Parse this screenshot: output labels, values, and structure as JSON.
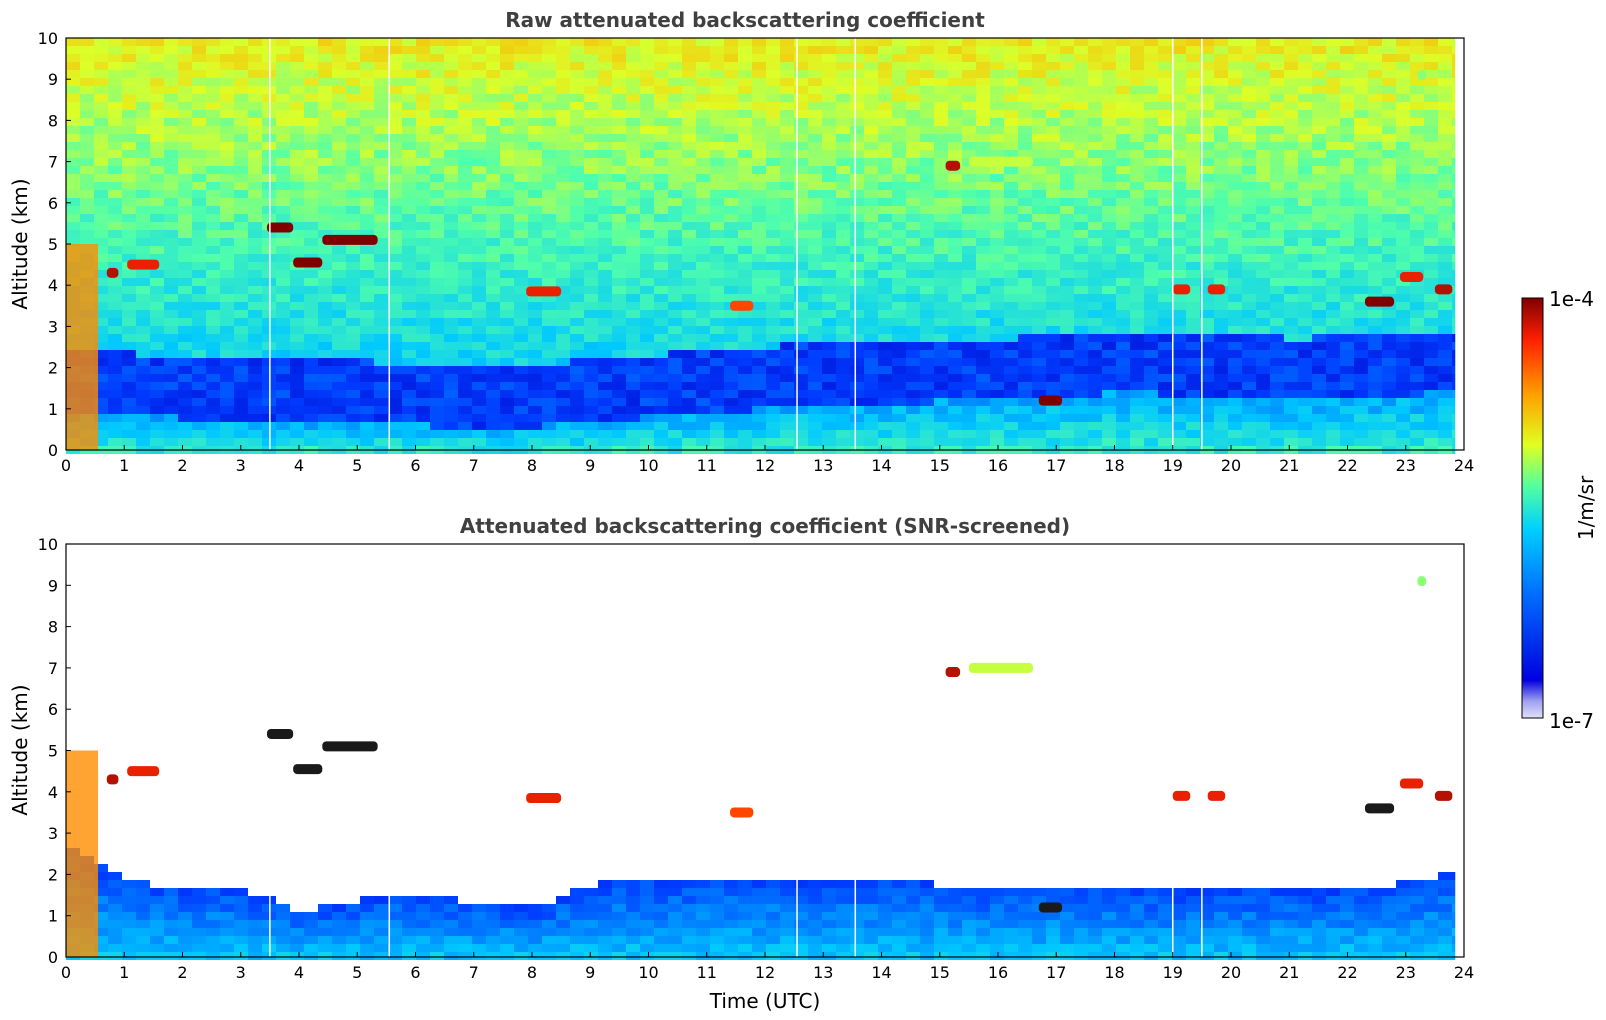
{
  "chart_data": [
    {
      "type": "heatmap",
      "title": "Raw attenuated backscattering coefficient",
      "xlabel": "",
      "ylabel": "Altitude (km)",
      "xlim": [
        0,
        24
      ],
      "ylim": [
        0,
        10
      ],
      "x_ticks": [
        0,
        1,
        2,
        3,
        4,
        5,
        6,
        7,
        8,
        9,
        10,
        11,
        12,
        13,
        14,
        15,
        16,
        17,
        18,
        19,
        20,
        21,
        22,
        23,
        24
      ],
      "y_ticks": [
        0,
        1,
        2,
        3,
        4,
        5,
        6,
        7,
        8,
        9,
        10
      ],
      "data_end_time": 23.85,
      "gap_times": [
        3.5,
        5.55,
        12.55,
        13.55,
        19.0,
        19.5
      ],
      "boundary_layer_top_km": [
        {
          "t": 0,
          "z": 1.0
        },
        {
          "t": 2,
          "z": 0.85
        },
        {
          "t": 5,
          "z": 0.75
        },
        {
          "t": 7.5,
          "z": 0.6
        },
        {
          "t": 10,
          "z": 0.9
        },
        {
          "t": 13,
          "z": 1.2
        },
        {
          "t": 16,
          "z": 1.3
        },
        {
          "t": 18,
          "z": 1.5
        },
        {
          "t": 21,
          "z": 1.3
        },
        {
          "t": 23.85,
          "z": 1.5
        }
      ],
      "cloud_layers": [
        {
          "t0": 0.7,
          "t1": 0.9,
          "z": 4.3,
          "intensity": 0.95
        },
        {
          "t0": 1.05,
          "t1": 1.6,
          "z": 4.5,
          "intensity": 0.9
        },
        {
          "t0": 3.45,
          "t1": 3.9,
          "z": 5.4,
          "intensity": 1.0
        },
        {
          "t0": 3.9,
          "t1": 4.4,
          "z": 4.55,
          "intensity": 1.0
        },
        {
          "t0": 4.4,
          "t1": 5.35,
          "z": 5.1,
          "intensity": 1.0
        },
        {
          "t0": 7.9,
          "t1": 8.5,
          "z": 3.85,
          "intensity": 0.9
        },
        {
          "t0": 11.4,
          "t1": 11.8,
          "z": 3.5,
          "intensity": 0.85
        },
        {
          "t0": 15.1,
          "t1": 15.35,
          "z": 6.9,
          "intensity": 0.95
        },
        {
          "t0": 15.5,
          "t1": 16.6,
          "z": 7.0,
          "intensity": 0.6
        },
        {
          "t0": 16.7,
          "t1": 17.1,
          "z": 1.2,
          "intensity": 1.0
        },
        {
          "t0": 19.0,
          "t1": 19.3,
          "z": 3.9,
          "intensity": 0.9
        },
        {
          "t0": 19.6,
          "t1": 19.9,
          "z": 3.9,
          "intensity": 0.9
        },
        {
          "t0": 22.3,
          "t1": 22.8,
          "z": 3.6,
          "intensity": 1.0
        },
        {
          "t0": 22.9,
          "t1": 23.3,
          "z": 4.2,
          "intensity": 0.9
        },
        {
          "t0": 23.5,
          "t1": 23.8,
          "z": 3.9,
          "intensity": 0.95
        },
        {
          "t0": 23.2,
          "t1": 23.35,
          "z": 9.1,
          "intensity": 0.55
        }
      ]
    },
    {
      "type": "heatmap",
      "title": "Attenuated backscattering coefficient (SNR-screened)",
      "xlabel": "Time (UTC)",
      "ylabel": "Altitude (km)",
      "xlim": [
        0,
        24
      ],
      "ylim": [
        0,
        10
      ],
      "x_ticks": [
        0,
        1,
        2,
        3,
        4,
        5,
        6,
        7,
        8,
        9,
        10,
        11,
        12,
        13,
        14,
        15,
        16,
        17,
        18,
        19,
        20,
        21,
        22,
        23,
        24
      ],
      "y_ticks": [
        0,
        1,
        2,
        3,
        4,
        5,
        6,
        7,
        8,
        9,
        10
      ],
      "data_end_time": 23.85,
      "screened_layer_top_km": [
        {
          "t": 0,
          "z": 2.7
        },
        {
          "t": 1,
          "z": 1.9
        },
        {
          "t": 3,
          "z": 1.7
        },
        {
          "t": 4,
          "z": 1.2
        },
        {
          "t": 5.5,
          "z": 1.6
        },
        {
          "t": 8,
          "z": 1.3
        },
        {
          "t": 9,
          "z": 1.9
        },
        {
          "t": 12,
          "z": 2.0
        },
        {
          "t": 16,
          "z": 1.8
        },
        {
          "t": 19,
          "z": 1.7
        },
        {
          "t": 22,
          "z": 1.7
        },
        {
          "t": 23.85,
          "z": 2.2
        }
      ]
    }
  ],
  "colorbar": {
    "label": "1/m/sr",
    "max_label": "1e-4",
    "min_label": "1e-7",
    "colormap": "jet",
    "colors": [
      "#d0d0f0",
      "#0000cc",
      "#0060ff",
      "#00c8ff",
      "#40ffb0",
      "#d0ff30",
      "#ffb000",
      "#ff3000",
      "#800000"
    ]
  }
}
